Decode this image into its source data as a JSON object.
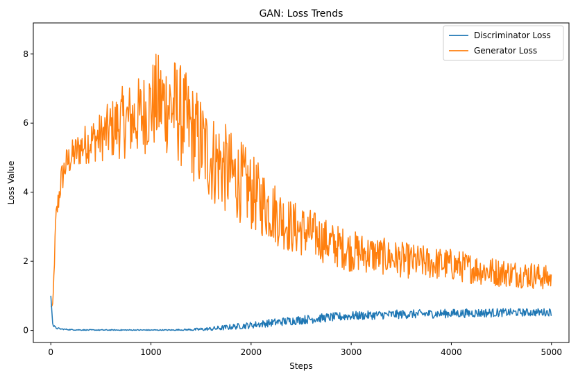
{
  "chart_data": {
    "type": "line",
    "title": "GAN: Loss Trends",
    "xlabel": "Steps",
    "ylabel": "Loss Value",
    "xlim": [
      -175,
      5175
    ],
    "ylim": [
      -0.35,
      8.9
    ],
    "xticks": [
      0,
      1000,
      2000,
      3000,
      4000,
      5000
    ],
    "yticks": [
      0,
      2,
      4,
      6,
      8
    ],
    "grid": false,
    "legend_position": "top-right",
    "series": [
      {
        "name": "Discriminator Loss",
        "color": "#1f77b4",
        "x": [
          0,
          20,
          50,
          100,
          200,
          400,
          600,
          800,
          1000,
          1200,
          1400,
          1600,
          1800,
          2000,
          2200,
          2400,
          2600,
          2800,
          3000,
          3200,
          3400,
          3600,
          3800,
          4000,
          4200,
          4400,
          4600,
          4800,
          5000
        ],
        "y": [
          1.0,
          0.15,
          0.07,
          0.04,
          0.02,
          0.01,
          0.01,
          0.01,
          0.01,
          0.01,
          0.02,
          0.04,
          0.1,
          0.15,
          0.22,
          0.28,
          0.33,
          0.38,
          0.42,
          0.44,
          0.46,
          0.47,
          0.48,
          0.49,
          0.5,
          0.51,
          0.52,
          0.52,
          0.53
        ],
        "noise": [
          0,
          0.02,
          0.02,
          0.01,
          0.01,
          0.01,
          0.01,
          0.01,
          0.01,
          0.01,
          0.02,
          0.04,
          0.05,
          0.06,
          0.07,
          0.08,
          0.08,
          0.08,
          0.08,
          0.08,
          0.08,
          0.08,
          0.08,
          0.08,
          0.08,
          0.08,
          0.07,
          0.07,
          0.07
        ]
      },
      {
        "name": "Generator Loss",
        "color": "#ff7f0e",
        "x": [
          0,
          20,
          50,
          100,
          150,
          200,
          300,
          400,
          500,
          600,
          700,
          800,
          900,
          1000,
          1050,
          1100,
          1200,
          1250,
          1300,
          1400,
          1500,
          1600,
          1700,
          1800,
          1900,
          2000,
          2200,
          2400,
          2600,
          2800,
          3000,
          3200,
          3400,
          3600,
          3800,
          4000,
          4200,
          4400,
          4600,
          4800,
          5000
        ],
        "y": [
          0.7,
          0.7,
          3.2,
          4.3,
          4.8,
          5.0,
          5.3,
          5.5,
          5.6,
          5.8,
          6.0,
          6.1,
          6.2,
          6.5,
          6.6,
          6.6,
          6.5,
          6.4,
          6.2,
          5.8,
          5.4,
          5.0,
          4.8,
          4.5,
          4.3,
          4.0,
          3.5,
          3.0,
          2.8,
          2.5,
          2.3,
          2.2,
          2.1,
          2.0,
          1.95,
          1.9,
          1.8,
          1.7,
          1.65,
          1.6,
          1.5
        ],
        "noise": [
          0,
          0.05,
          0.2,
          0.3,
          0.3,
          0.3,
          0.35,
          0.4,
          0.45,
          0.55,
          0.65,
          0.7,
          0.75,
          0.8,
          0.9,
          0.9,
          0.95,
          0.95,
          0.95,
          0.9,
          0.9,
          0.85,
          0.85,
          0.8,
          0.75,
          0.7,
          0.6,
          0.5,
          0.45,
          0.4,
          0.38,
          0.35,
          0.33,
          0.32,
          0.3,
          0.3,
          0.28,
          0.27,
          0.25,
          0.25,
          0.22
        ]
      }
    ]
  }
}
